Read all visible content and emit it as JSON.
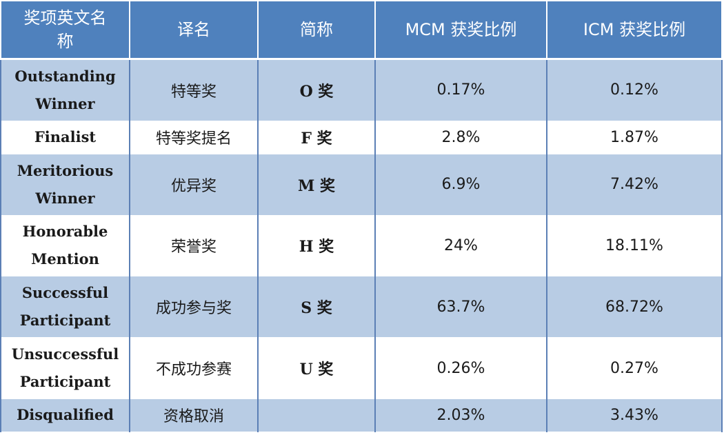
{
  "table": {
    "headers": [
      "奖项英文名称",
      "译名",
      "简称",
      "MCM 获奖比例",
      "ICM 获奖比例"
    ],
    "rows": [
      {
        "english": "Outstanding Winner",
        "translation": "特等奖",
        "abbr": "O 奖",
        "mcm": "0.17%",
        "icm": "0.12%"
      },
      {
        "english": "Finalist",
        "translation": "特等奖提名",
        "abbr": "F 奖",
        "mcm": "2.8%",
        "icm": "1.87%"
      },
      {
        "english": "Meritorious Winner",
        "translation": "优异奖",
        "abbr": "M 奖",
        "mcm": "6.9%",
        "icm": "7.42%"
      },
      {
        "english": "Honorable Mention",
        "translation": "荣誉奖",
        "abbr": "H 奖",
        "mcm": "24%",
        "icm": "18.11%"
      },
      {
        "english": "Successful Participant",
        "translation": "成功参与奖",
        "abbr": "S 奖",
        "mcm": "63.7%",
        "icm": "68.72%"
      },
      {
        "english": "Unsuccessful Participant",
        "translation": "不成功参赛",
        "abbr": "U 奖",
        "mcm": "0.26%",
        "icm": "0.27%"
      },
      {
        "english": "Disqualified",
        "translation": "资格取消",
        "abbr": "",
        "mcm": "2.03%",
        "icm": "3.43%"
      }
    ]
  },
  "colors": {
    "header_bg": "#4f81bd",
    "row_dark": "#b8cce4",
    "row_light": "#dce6f1",
    "border": "#5b7fb5"
  }
}
